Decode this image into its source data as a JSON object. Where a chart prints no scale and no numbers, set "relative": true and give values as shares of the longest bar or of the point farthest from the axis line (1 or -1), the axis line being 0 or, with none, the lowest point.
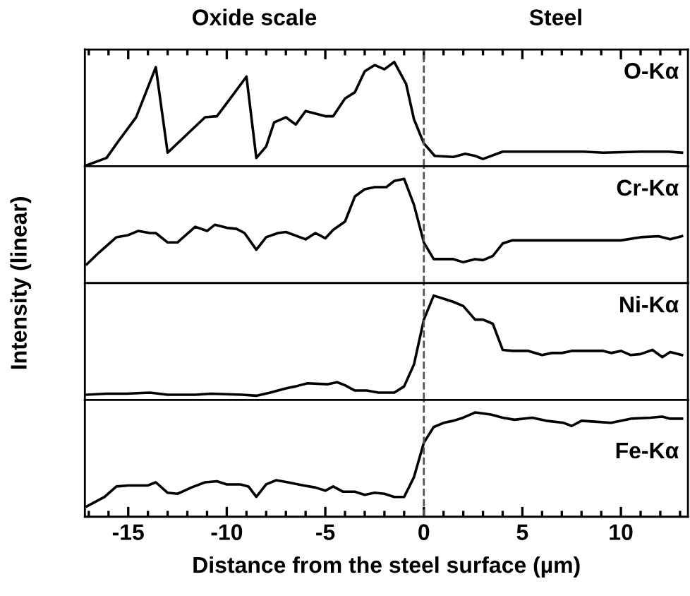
{
  "chart_data": [
    {
      "type": "line",
      "title": "O-Kα",
      "ylabel": "Intensity (linear)",
      "annotations": [
        "Oxide scale",
        "Steel"
      ],
      "relative": true,
      "xlim": [
        -17.2,
        13.4
      ],
      "tick_labels": false,
      "ref_lines": [
        {
          "axis": "x",
          "value": 0,
          "line_style": "dashed",
          "color": "#555555"
        }
      ],
      "series": [
        {
          "color": "#000000",
          "x": [
            -17.1,
            -16.1,
            -15.5,
            -14.6,
            -13.6,
            -13.0,
            -12.0,
            -11.1,
            -10.5,
            -9.9,
            -9.0,
            -8.5,
            -8.0,
            -7.6,
            -7.0,
            -6.5,
            -6.0,
            -5.0,
            -4.6,
            -4.0,
            -3.5,
            -3.0,
            -2.5,
            -2.0,
            -1.5,
            -0.9,
            -0.5,
            0,
            0.55,
            1.5,
            2.1,
            2.6,
            3.0,
            4.0,
            6.2,
            7.2,
            8.1,
            9.1,
            11.0,
            12.4,
            13.1
          ],
          "values": [
            0.01,
            0.08,
            0.24,
            0.47,
            0.95,
            0.13,
            0.31,
            0.47,
            0.48,
            0.63,
            0.86,
            0.08,
            0.19,
            0.42,
            0.47,
            0.4,
            0.53,
            0.48,
            0.48,
            0.65,
            0.71,
            0.91,
            0.97,
            0.93,
            1.0,
            0.79,
            0.45,
            0.22,
            0.1,
            0.09,
            0.12,
            0.1,
            0.07,
            0.14,
            0.14,
            0.14,
            0.14,
            0.13,
            0.14,
            0.14,
            0.13
          ]
        }
      ]
    },
    {
      "type": "line",
      "title": "Cr-Kα",
      "relative": true,
      "xlim": [
        -17.2,
        13.4
      ],
      "tick_labels": false,
      "ref_lines": [
        {
          "axis": "x",
          "value": 0,
          "line_style": "dashed",
          "color": "#555555"
        }
      ],
      "series": [
        {
          "color": "#000000",
          "x": [
            -17.1,
            -16.5,
            -15.6,
            -15.0,
            -14.5,
            -13.9,
            -13.6,
            -13.0,
            -12.5,
            -11.6,
            -11.0,
            -10.6,
            -10.0,
            -9.5,
            -9.1,
            -8.5,
            -8.0,
            -7.4,
            -7.0,
            -6.0,
            -5.5,
            -5.0,
            -4.6,
            -4.0,
            -3.5,
            -3.0,
            -2.5,
            -1.9,
            -1.5,
            -1.0,
            -0.5,
            0,
            0.5,
            1.5,
            2.0,
            2.6,
            3.0,
            3.5,
            4.0,
            4.5,
            6.2,
            7.7,
            8.1,
            10.0,
            11.0,
            11.9,
            12.5,
            13.1
          ],
          "values": [
            0.18,
            0.29,
            0.44,
            0.46,
            0.5,
            0.48,
            0.48,
            0.39,
            0.39,
            0.54,
            0.5,
            0.56,
            0.53,
            0.52,
            0.48,
            0.32,
            0.44,
            0.48,
            0.49,
            0.42,
            0.48,
            0.43,
            0.51,
            0.59,
            0.83,
            0.9,
            0.92,
            0.92,
            0.98,
            1.0,
            0.75,
            0.39,
            0.23,
            0.23,
            0.2,
            0.23,
            0.22,
            0.26,
            0.38,
            0.41,
            0.41,
            0.41,
            0.41,
            0.41,
            0.44,
            0.45,
            0.42,
            0.45
          ]
        }
      ]
    },
    {
      "type": "line",
      "title": "Ni-Kα",
      "relative": true,
      "xlim": [
        -17.2,
        13.4
      ],
      "tick_labels": false,
      "ref_lines": [
        {
          "axis": "x",
          "value": 0,
          "line_style": "dashed",
          "color": "#555555"
        }
      ],
      "series": [
        {
          "color": "#000000",
          "x": [
            -17.1,
            -16.1,
            -15.1,
            -13.9,
            -13.0,
            -11.6,
            -10.8,
            -9.2,
            -8.5,
            -7.8,
            -7.0,
            -6.5,
            -5.9,
            -4.9,
            -4.4,
            -4.0,
            -3.5,
            -2.9,
            -2.3,
            -1.5,
            -1.0,
            -0.5,
            0,
            0.5,
            1.0,
            1.5,
            2.0,
            2.6,
            3.0,
            3.5,
            4.0,
            4.5,
            5.3,
            6.0,
            6.5,
            7.0,
            7.5,
            8.6,
            9.1,
            9.5,
            10.0,
            10.5,
            11.0,
            11.6,
            12.1,
            12.5,
            13.1
          ],
          "values": [
            0.05,
            0.06,
            0.06,
            0.07,
            0.05,
            0.05,
            0.06,
            0.05,
            0.04,
            0.07,
            0.11,
            0.13,
            0.16,
            0.15,
            0.17,
            0.14,
            0.09,
            0.09,
            0.07,
            0.07,
            0.13,
            0.34,
            0.77,
            1.0,
            0.97,
            0.94,
            0.9,
            0.77,
            0.77,
            0.73,
            0.48,
            0.47,
            0.47,
            0.43,
            0.45,
            0.45,
            0.47,
            0.47,
            0.47,
            0.45,
            0.47,
            0.43,
            0.44,
            0.48,
            0.41,
            0.46,
            0.43
          ]
        }
      ]
    },
    {
      "type": "line",
      "title": "Fe-Kα",
      "xlabel": "Distance from the steel surface (µm)",
      "relative": true,
      "xlim": [
        -17.2,
        13.4
      ],
      "xticks": [
        {
          "value": -15,
          "label": "-15"
        },
        {
          "value": -10,
          "label": "-10"
        },
        {
          "value": -5,
          "label": "-5"
        },
        0,
        5,
        10
      ],
      "tick_labels": "x",
      "ref_lines": [
        {
          "axis": "x",
          "value": 0,
          "line_style": "dashed",
          "color": "#555555"
        }
      ],
      "series": [
        {
          "color": "#000000",
          "x": [
            -17.1,
            -16.2,
            -15.6,
            -15.0,
            -14.0,
            -13.6,
            -13.0,
            -12.5,
            -11.8,
            -11.1,
            -10.5,
            -10.0,
            -9.3,
            -8.9,
            -8.5,
            -8.0,
            -7.5,
            -6.9,
            -6.1,
            -5.5,
            -5.0,
            -4.6,
            -4.1,
            -3.5,
            -3.0,
            -2.5,
            -2.0,
            -1.5,
            -1.0,
            -0.5,
            0,
            0.5,
            1.0,
            1.5,
            2.0,
            2.6,
            3.4,
            4.0,
            4.6,
            5.5,
            6.2,
            7.1,
            7.5,
            8.0,
            8.8,
            9.5,
            10.5,
            11.5,
            12.1,
            12.5,
            13.1
          ],
          "values": [
            0.1,
            0.19,
            0.29,
            0.3,
            0.3,
            0.33,
            0.23,
            0.22,
            0.28,
            0.33,
            0.34,
            0.31,
            0.31,
            0.29,
            0.19,
            0.31,
            0.35,
            0.33,
            0.3,
            0.28,
            0.25,
            0.29,
            0.24,
            0.24,
            0.21,
            0.23,
            0.22,
            0.19,
            0.19,
            0.38,
            0.71,
            0.86,
            0.9,
            0.92,
            0.95,
            1.0,
            0.98,
            0.95,
            0.93,
            0.95,
            0.92,
            0.9,
            0.87,
            0.92,
            0.91,
            0.9,
            0.94,
            0.95,
            0.96,
            0.94,
            0.94
          ]
        }
      ]
    }
  ]
}
